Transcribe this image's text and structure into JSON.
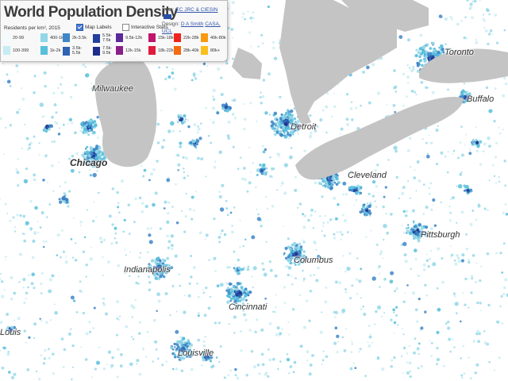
{
  "app": {
    "title": "World Population Density",
    "data_label": "Data:",
    "data_source": "EC JRC & CIESIN",
    "design_label": "Design:",
    "design_credit": "D A Smith",
    "design_org": "CASA, UCL"
  },
  "legend": {
    "heading": "Residents per km², 2015",
    "items": [
      {
        "label": "20-99",
        "color": "#f3fbfd"
      },
      {
        "label": "100-399",
        "color": "#c7ecf3"
      },
      {
        "label": "400-1k",
        "color": "#92d7e7"
      },
      {
        "label": "1k-2k",
        "color": "#58bfdc"
      },
      {
        "label": "2k-3.5k",
        "color": "#3f86c8"
      },
      {
        "label": "3.5k-5.5k",
        "color": "#2f63b4"
      },
      {
        "label": "5.5k-7.5k",
        "color": "#22409c"
      },
      {
        "label": "7.5k-9.5k",
        "color": "#1e2d8a"
      },
      {
        "label": "9.5k-12k",
        "color": "#5a2a9a"
      },
      {
        "label": "12k-15k",
        "color": "#8a1f8a"
      },
      {
        "label": "15k-18k",
        "color": "#c0146c"
      },
      {
        "label": "18k-22k",
        "color": "#e01a3c"
      },
      {
        "label": "22k-28k",
        "color": "#f0221e"
      },
      {
        "label": "28k-40k",
        "color": "#f46a10"
      },
      {
        "label": "40k-80k",
        "color": "#f79a10"
      },
      {
        "label": "80k+",
        "color": "#fbbf1c"
      }
    ]
  },
  "controls": {
    "map_labels": {
      "label": "Map Labels",
      "checked": true
    },
    "interactive_stats": {
      "label": "Interactive Stats",
      "checked": false
    }
  },
  "map": {
    "water_color": "#c4c4c4",
    "land_color": "#ffffff",
    "cities": {
      "milwaukee": "Milwaukee",
      "chicago": "Chicago",
      "detroit": "Detroit",
      "toronto": "Toronto",
      "buffalo": "Buffalo",
      "cleveland": "Cleveland",
      "pittsburgh": "Pittsburgh",
      "columbus": "Columbus",
      "indianapolis": "Indianapolis",
      "cincinnati": "Cincinnati",
      "louisville": "Louisville",
      "louis": "Louis"
    }
  }
}
